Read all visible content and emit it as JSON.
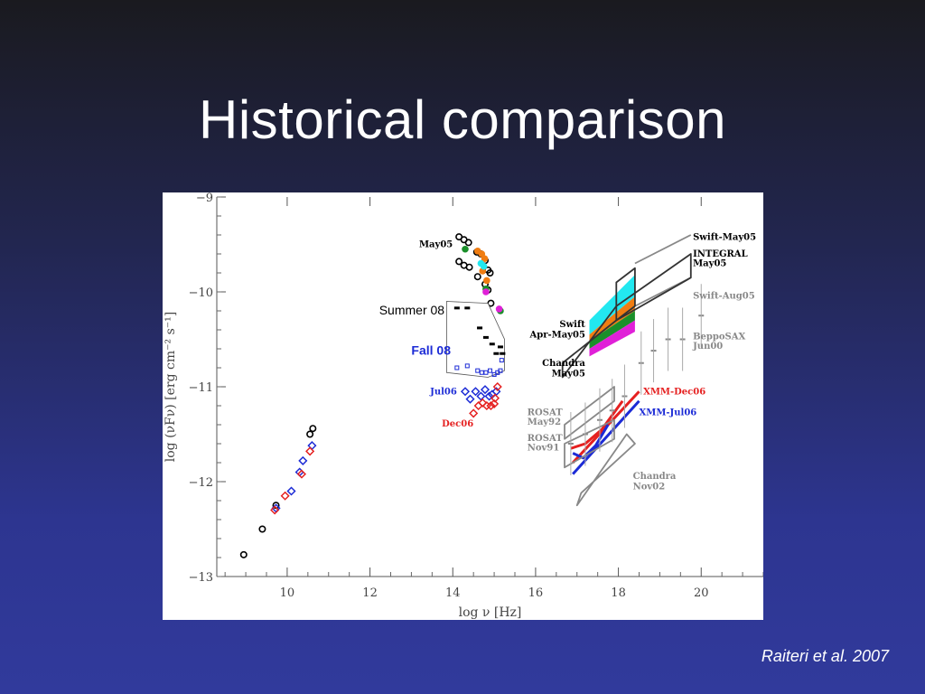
{
  "slide": {
    "title": "Historical comparison",
    "citation": "Raiteri et al. 2007"
  },
  "colors": {
    "black": "#000000",
    "red": "#e52020",
    "blue": "#1c2bd6",
    "gray": "#888888",
    "cyan": "#22e8f0",
    "orange": "#f07d12",
    "green": "#1a8f2a",
    "magenta": "#e020d8"
  },
  "chart_data": {
    "type": "scatter",
    "title": "",
    "xlabel": "log ν [Hz]",
    "ylabel": "log (νFν) [erg cm⁻² s⁻¹]",
    "xlim": [
      8.3,
      21.5
    ],
    "ylim": [
      -13,
      -9
    ],
    "xticks": [
      10,
      12,
      14,
      16,
      18,
      20
    ],
    "yticks": [
      -13,
      -12,
      -11,
      -10,
      -9
    ],
    "xtick_labels": [
      "10",
      "12",
      "14",
      "16",
      "18",
      "20"
    ],
    "ytick_labels": [
      "−13",
      "−12",
      "−11",
      "−10",
      "−9"
    ],
    "grid": false,
    "series": [
      {
        "name": "May05",
        "marker": "circle",
        "color": "#000000",
        "points": [
          [
            8.95,
            -12.77
          ],
          [
            9.4,
            -12.5
          ],
          [
            9.73,
            -12.25
          ],
          [
            10.55,
            -11.5
          ],
          [
            10.62,
            -11.44
          ],
          [
            14.15,
            -9.42
          ],
          [
            14.27,
            -9.45
          ],
          [
            14.38,
            -9.48
          ],
          [
            14.58,
            -9.58
          ],
          [
            14.68,
            -9.6
          ],
          [
            14.78,
            -9.67
          ],
          [
            14.85,
            -9.77
          ],
          [
            14.9,
            -9.8
          ],
          [
            14.15,
            -9.68
          ],
          [
            14.27,
            -9.72
          ],
          [
            14.4,
            -9.74
          ],
          [
            14.6,
            -9.84
          ],
          [
            14.78,
            -9.92
          ],
          [
            14.85,
            -9.98
          ],
          [
            14.92,
            -10.12
          ]
        ]
      },
      {
        "name": "Jul06",
        "marker": "diamond",
        "color": "#1c2bd6",
        "points": [
          [
            9.73,
            -12.28
          ],
          [
            10.1,
            -12.1
          ],
          [
            10.3,
            -11.9
          ],
          [
            10.38,
            -11.78
          ],
          [
            10.6,
            -11.62
          ],
          [
            14.3,
            -11.05
          ],
          [
            14.42,
            -11.13
          ],
          [
            14.55,
            -11.05
          ],
          [
            14.68,
            -11.1
          ],
          [
            14.78,
            -11.03
          ],
          [
            14.88,
            -11.1
          ],
          [
            14.95,
            -11.08
          ],
          [
            15.05,
            -11.05
          ]
        ]
      },
      {
        "name": "Dec06",
        "marker": "diamond",
        "color": "#e52020",
        "points": [
          [
            9.7,
            -12.3
          ],
          [
            9.95,
            -12.15
          ],
          [
            10.35,
            -11.92
          ],
          [
            10.55,
            -11.68
          ],
          [
            14.5,
            -11.28
          ],
          [
            14.62,
            -11.2
          ],
          [
            14.72,
            -11.17
          ],
          [
            14.82,
            -11.2
          ],
          [
            14.92,
            -11.2
          ],
          [
            15.0,
            -11.18
          ],
          [
            15.02,
            -11.12
          ],
          [
            15.08,
            -11.0
          ]
        ]
      },
      {
        "name": "Summer 08",
        "marker": "dash",
        "color": "#000000",
        "points": [
          [
            14.1,
            -10.17
          ],
          [
            14.35,
            -10.17
          ],
          [
            14.65,
            -10.38
          ],
          [
            14.8,
            -10.48
          ],
          [
            14.95,
            -10.55
          ],
          [
            15.15,
            -10.58
          ],
          [
            15.05,
            -10.65
          ],
          [
            15.2,
            -10.65
          ]
        ]
      },
      {
        "name": "Fall 08",
        "marker": "square",
        "color": "#1c2bd6",
        "points": [
          [
            14.1,
            -10.8
          ],
          [
            14.35,
            -10.78
          ],
          [
            14.6,
            -10.83
          ],
          [
            14.7,
            -10.85
          ],
          [
            14.8,
            -10.85
          ],
          [
            14.9,
            -10.83
          ],
          [
            15.0,
            -10.87
          ],
          [
            15.08,
            -10.85
          ],
          [
            15.15,
            -10.83
          ],
          [
            15.18,
            -10.72
          ]
        ]
      },
      {
        "name": "Swift Apr-May05",
        "marker": "filled-circle",
        "color": "#f07d12",
        "points": [
          [
            14.6,
            -9.57
          ],
          [
            14.7,
            -9.6
          ],
          [
            14.77,
            -9.65
          ],
          [
            14.72,
            -9.78
          ],
          [
            14.82,
            -9.88
          ]
        ]
      },
      {
        "name": "",
        "marker": "filled-circle",
        "color": "#1a8f2a",
        "points": [
          [
            14.3,
            -9.55
          ],
          [
            14.8,
            -9.97
          ],
          [
            15.15,
            -10.2
          ]
        ]
      },
      {
        "name": "",
        "marker": "filled-circle",
        "color": "#22e8f0",
        "points": [
          [
            14.68,
            -9.7
          ],
          [
            14.75,
            -9.73
          ]
        ]
      },
      {
        "name": "",
        "marker": "filled-circle",
        "color": "#e020d8",
        "points": [
          [
            14.8,
            -10.0
          ],
          [
            15.12,
            -10.18
          ]
        ]
      },
      {
        "name": "BeppoSAX Jun00",
        "marker": "cross",
        "color": "#888888",
        "points": [
          [
            16.85,
            -11.6
          ],
          [
            17.2,
            -11.5
          ],
          [
            17.55,
            -11.35
          ],
          [
            17.85,
            -11.25
          ],
          [
            18.15,
            -11.1
          ],
          [
            18.55,
            -10.75
          ],
          [
            18.85,
            -10.62
          ],
          [
            19.2,
            -10.5
          ],
          [
            19.55,
            -10.5
          ],
          [
            20.0,
            -10.25
          ]
        ]
      }
    ],
    "bands": [
      {
        "name": "Swift Apr-May05",
        "color": "#22e8f0",
        "x": [
          17.3,
          18.4
        ],
        "upper": [
          -10.3,
          -9.82
        ],
        "lower": [
          -10.45,
          -10.05
        ]
      },
      {
        "name": "",
        "color": "#f07d12",
        "x": [
          17.3,
          18.4
        ],
        "upper": [
          -10.45,
          -10.05
        ],
        "lower": [
          -10.52,
          -10.2
        ]
      },
      {
        "name": "",
        "color": "#1a8f2a",
        "x": [
          17.3,
          18.4
        ],
        "upper": [
          -10.52,
          -10.2
        ],
        "lower": [
          -10.6,
          -10.3
        ]
      },
      {
        "name": "",
        "color": "#e020d8",
        "x": [
          17.3,
          18.4
        ],
        "upper": [
          -10.6,
          -10.3
        ],
        "lower": [
          -10.68,
          -10.42
        ]
      }
    ],
    "polylines": [
      {
        "name": "Swift-May05",
        "color": "#888888",
        "points": [
          [
            18.4,
            -9.7
          ],
          [
            19.75,
            -9.4
          ]
        ]
      },
      {
        "name": "Swift-Aug05",
        "color": "#888888",
        "points": [
          [
            18.4,
            -10.15
          ],
          [
            19.75,
            -9.85
          ]
        ]
      },
      {
        "name": "Chandra May05",
        "color": "#333333",
        "closed": true,
        "points": [
          [
            16.65,
            -10.9
          ],
          [
            17.95,
            -10.15
          ],
          [
            19.75,
            -9.6
          ],
          [
            19.75,
            -9.85
          ],
          [
            17.95,
            -10.3
          ],
          [
            16.65,
            -10.75
          ]
        ]
      },
      {
        "name": "INTEGRAL May05",
        "color": "#333333",
        "closed": true,
        "points": [
          [
            17.95,
            -10.3
          ],
          [
            17.95,
            -9.9
          ],
          [
            18.4,
            -9.75
          ],
          [
            18.4,
            -10.15
          ]
        ]
      },
      {
        "name": "XMM-Dec06",
        "color": "#e52020",
        "points": [
          [
            16.9,
            -11.8
          ],
          [
            18.5,
            -11.05
          ]
        ]
      },
      {
        "name": "XMM-Jul06",
        "color": "#1c2bd6",
        "points": [
          [
            16.9,
            -11.92
          ],
          [
            18.5,
            -11.15
          ]
        ]
      },
      {
        "name": "",
        "color": "#e52020",
        "points": [
          [
            16.85,
            -11.65
          ],
          [
            17.2,
            -11.6
          ],
          [
            17.6,
            -11.45
          ],
          [
            18.1,
            -11.15
          ]
        ]
      },
      {
        "name": "",
        "color": "#1c2bd6",
        "points": [
          [
            16.9,
            -11.7
          ],
          [
            17.15,
            -11.75
          ],
          [
            17.45,
            -11.62
          ],
          [
            17.75,
            -11.4
          ]
        ]
      },
      {
        "name": "ROSAT May92",
        "color": "#888888",
        "closed": true,
        "points": [
          [
            16.7,
            -11.4
          ],
          [
            17.9,
            -11.0
          ],
          [
            17.9,
            -11.15
          ],
          [
            16.7,
            -11.55
          ]
        ]
      },
      {
        "name": "ROSAT Nov91",
        "color": "#888888",
        "closed": true,
        "points": [
          [
            16.7,
            -11.6
          ],
          [
            17.9,
            -11.35
          ],
          [
            17.9,
            -11.55
          ],
          [
            16.7,
            -11.85
          ]
        ]
      },
      {
        "name": "Chandra Nov02",
        "color": "#888888",
        "closed": true,
        "points": [
          [
            17.0,
            -12.25
          ],
          [
            18.2,
            -11.5
          ],
          [
            18.4,
            -11.6
          ],
          [
            17.1,
            -12.12
          ]
        ]
      }
    ],
    "annotations": [
      {
        "text": "May05",
        "x": 14.0,
        "y": -9.53,
        "color": "#000000",
        "anchor": "end",
        "font": "serif"
      },
      {
        "text": "Jul06",
        "x": 14.1,
        "y": -11.08,
        "color": "#1c2bd6",
        "anchor": "end",
        "font": "serif"
      },
      {
        "text": "Dec06",
        "x": 14.5,
        "y": -11.42,
        "color": "#e52020",
        "anchor": "end",
        "font": "serif"
      },
      {
        "text": "Swift-May05",
        "x": 19.8,
        "y": -9.45,
        "color": "#000000",
        "anchor": "start",
        "font": "serif"
      },
      {
        "text": "INTEGRAL",
        "x": 19.8,
        "y": -9.63,
        "color": "#000000",
        "anchor": "start",
        "font": "serif"
      },
      {
        "text": "May05",
        "x": 19.8,
        "y": -9.73,
        "color": "#000000",
        "anchor": "start",
        "font": "serif"
      },
      {
        "text": "Swift-Aug05",
        "x": 19.8,
        "y": -10.07,
        "color": "#888888",
        "anchor": "start",
        "font": "serif"
      },
      {
        "text": "Swift",
        "x": 17.2,
        "y": -10.37,
        "color": "#000000",
        "anchor": "end",
        "font": "serif"
      },
      {
        "text": "Apr-May05",
        "x": 17.2,
        "y": -10.48,
        "color": "#000000",
        "anchor": "end",
        "font": "serif"
      },
      {
        "text": "Chandra",
        "x": 17.2,
        "y": -10.78,
        "color": "#000000",
        "anchor": "end",
        "font": "serif"
      },
      {
        "text": "May05",
        "x": 17.2,
        "y": -10.89,
        "color": "#000000",
        "anchor": "end",
        "font": "serif"
      },
      {
        "text": "BeppoSAX",
        "x": 19.8,
        "y": -10.5,
        "color": "#888888",
        "anchor": "start",
        "font": "serif"
      },
      {
        "text": "Jun00",
        "x": 19.8,
        "y": -10.6,
        "color": "#888888",
        "anchor": "start",
        "font": "serif"
      },
      {
        "text": "XMM-Dec06",
        "x": 18.6,
        "y": -11.08,
        "color": "#e52020",
        "anchor": "start",
        "font": "serif"
      },
      {
        "text": "XMM-Jul06",
        "x": 18.5,
        "y": -11.3,
        "color": "#1c2bd6",
        "anchor": "start",
        "font": "serif"
      },
      {
        "text": "ROSAT",
        "x": 15.8,
        "y": -11.3,
        "color": "#888888",
        "anchor": "start",
        "font": "serif"
      },
      {
        "text": "May92",
        "x": 15.8,
        "y": -11.4,
        "color": "#888888",
        "anchor": "start",
        "font": "serif"
      },
      {
        "text": "ROSAT",
        "x": 15.8,
        "y": -11.57,
        "color": "#888888",
        "anchor": "start",
        "font": "serif"
      },
      {
        "text": "Nov91",
        "x": 15.8,
        "y": -11.67,
        "color": "#888888",
        "anchor": "start",
        "font": "serif"
      },
      {
        "text": "Chandra",
        "x": 18.35,
        "y": -11.97,
        "color": "#888888",
        "anchor": "start",
        "font": "serif"
      },
      {
        "text": "Nov02",
        "x": 18.35,
        "y": -12.08,
        "color": "#888888",
        "anchor": "start",
        "font": "serif"
      }
    ],
    "overlay_box": {
      "points": [
        [
          13.85,
          -10.1
        ],
        [
          14.85,
          -10.12
        ],
        [
          15.25,
          -10.5
        ],
        [
          15.25,
          -10.83
        ],
        [
          14.85,
          -10.9
        ],
        [
          13.85,
          -10.85
        ]
      ],
      "labels": [
        {
          "text": "Summer 08",
          "x": 13.8,
          "y": -10.24,
          "color": "#000000",
          "anchor": "end",
          "bold": false
        },
        {
          "text": "Fall 08",
          "x": 13.0,
          "y": -10.66,
          "color": "#1c2bd6",
          "anchor": "start",
          "bold": true
        }
      ]
    }
  }
}
